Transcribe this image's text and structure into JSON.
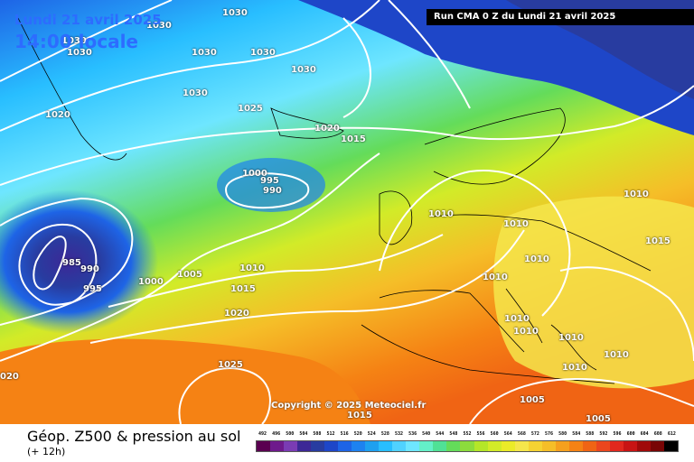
{
  "header": {
    "date": "Lundi 21 avril 2025",
    "time": "14:00 locale",
    "run": "Run CMA 0 Z du Lundi 21 avril 2025"
  },
  "copyright": "Copyright © 2025 Meteociel.fr",
  "caption": {
    "title": "Géop. Z500 & pression au sol",
    "subtitle": "(+ 12h)"
  },
  "legend": {
    "values": [
      "492",
      "496",
      "500",
      "504",
      "508",
      "512",
      "516",
      "520",
      "524",
      "528",
      "532",
      "536",
      "540",
      "544",
      "548",
      "552",
      "556",
      "560",
      "564",
      "568",
      "572",
      "576",
      "580",
      "584",
      "588",
      "592",
      "596",
      "600",
      "604",
      "608",
      "612"
    ],
    "colors": [
      "#5a0050",
      "#6e1a8c",
      "#7a3cb4",
      "#3c2896",
      "#283ca0",
      "#1e46c8",
      "#1e64e6",
      "#1e82f0",
      "#1ea0f0",
      "#28beff",
      "#50d2ff",
      "#6ee6ff",
      "#64f0c8",
      "#50e196",
      "#64dc5a",
      "#8cdc3c",
      "#b4e628",
      "#d2eb28",
      "#ebeb28",
      "#f5e64b",
      "#f5d232",
      "#f5be28",
      "#f5a01e",
      "#f58214",
      "#f06414",
      "#eb461e",
      "#e1281e",
      "#c81414",
      "#a00a0a",
      "#780505",
      "#000000"
    ]
  },
  "isobars": [
    {
      "label": "1030"
    },
    {
      "label": "1030"
    },
    {
      "label": "1030"
    },
    {
      "label": "1030"
    },
    {
      "label": "1030"
    },
    {
      "label": "1030"
    },
    {
      "label": "1030"
    },
    {
      "label": "1030"
    },
    {
      "label": "1020"
    },
    {
      "label": "1025"
    },
    {
      "label": "1020"
    },
    {
      "label": "1015"
    },
    {
      "label": "1000"
    },
    {
      "label": "995"
    },
    {
      "label": "990"
    },
    {
      "label": "1010"
    },
    {
      "label": "1010"
    },
    {
      "label": "1010"
    },
    {
      "label": "1010"
    },
    {
      "label": "1015"
    },
    {
      "label": "985"
    },
    {
      "label": "990"
    },
    {
      "label": "995"
    },
    {
      "label": "1000"
    },
    {
      "label": "1005"
    },
    {
      "label": "1010"
    },
    {
      "label": "1015"
    },
    {
      "label": "1010"
    },
    {
      "label": "1020"
    },
    {
      "label": "1010"
    },
    {
      "label": "1010"
    },
    {
      "label": "1010"
    },
    {
      "label": "1010"
    },
    {
      "label": "1010"
    },
    {
      "label": "1025"
    },
    {
      "label": "020"
    },
    {
      "label": "1005"
    },
    {
      "label": "1005"
    },
    {
      "label": "1015"
    }
  ]
}
